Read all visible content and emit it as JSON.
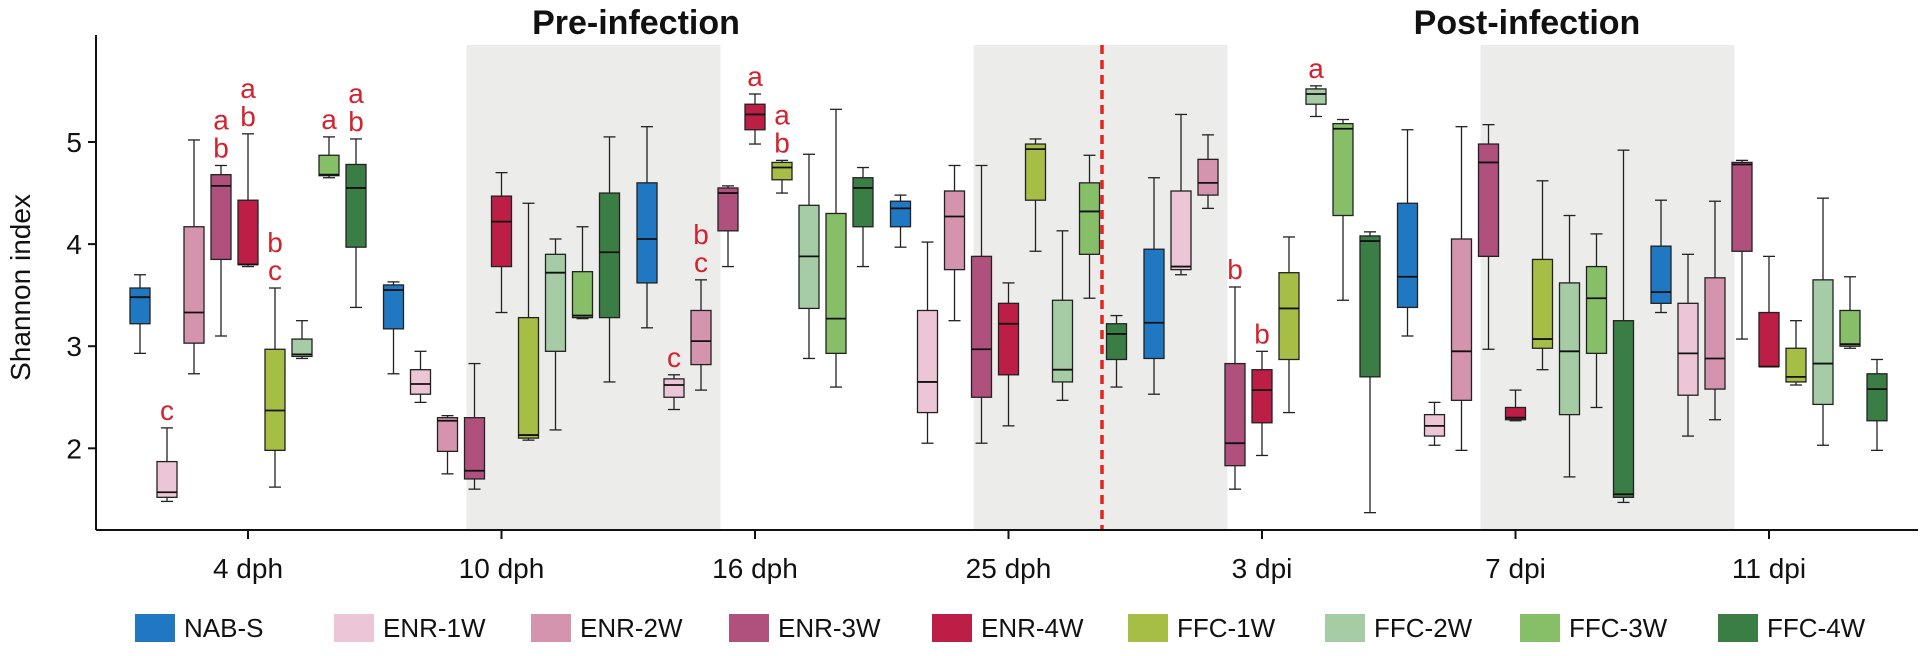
{
  "chart_data": {
    "type": "box",
    "ylabel": "Shannon index",
    "ylim": [
      1.2,
      5.95
    ],
    "yticks": [
      2,
      3,
      4,
      5
    ],
    "phases": [
      "Pre-infection",
      "Post-infection"
    ],
    "groups": [
      "4 dph",
      "10 dph",
      "16 dph",
      "25 dph",
      "3 dpi",
      "7 dpi",
      "11 dpi"
    ],
    "shaded_groups": [
      "10 dph",
      "25 dph",
      "7 dpi"
    ],
    "divider": "between 25 dph and 3 dpi",
    "series": [
      {
        "name": "NAB-S",
        "color": "#1f78c1"
      },
      {
        "name": "ENR-1W",
        "color": "#ecc6d6"
      },
      {
        "name": "ENR-2W",
        "color": "#d494ad"
      },
      {
        "name": "ENR-3W",
        "color": "#b0507c"
      },
      {
        "name": "ENR-4W",
        "color": "#bd1e45"
      },
      {
        "name": "FFC-1W",
        "color": "#a6be46"
      },
      {
        "name": "FFC-2W",
        "color": "#a5cca4"
      },
      {
        "name": "FFC-3W",
        "color": "#86bf68"
      },
      {
        "name": "FFC-4W",
        "color": "#3b7e45"
      }
    ],
    "boxes": [
      [
        {
          "min": 2.93,
          "q1": 3.22,
          "median": 3.48,
          "q3": 3.57,
          "max": 3.7
        },
        {
          "min": 1.48,
          "q1": 1.52,
          "median": 1.57,
          "q3": 1.87,
          "max": 2.2,
          "label": "c"
        },
        {
          "min": 2.73,
          "q1": 3.03,
          "median": 3.33,
          "q3": 4.17,
          "max": 5.02
        },
        {
          "min": 3.1,
          "q1": 3.85,
          "median": 4.57,
          "q3": 4.68,
          "max": 4.77,
          "label": "ab"
        },
        {
          "min": 3.78,
          "q1": 3.8,
          "median": 3.8,
          "q3": 4.43,
          "max": 5.08,
          "label": "ab"
        },
        {
          "min": 1.62,
          "q1": 1.98,
          "median": 2.37,
          "q3": 2.97,
          "max": 3.57,
          "label": "bc"
        },
        {
          "min": 2.88,
          "q1": 2.9,
          "median": 2.92,
          "q3": 3.07,
          "max": 3.25
        },
        {
          "min": 4.65,
          "q1": 4.67,
          "median": 4.68,
          "q3": 4.87,
          "max": 5.05,
          "label": "a"
        },
        {
          "min": 3.38,
          "q1": 3.97,
          "median": 4.55,
          "q3": 4.78,
          "max": 5.03,
          "label": "ab"
        }
      ],
      [
        {
          "min": 2.73,
          "q1": 3.17,
          "median": 3.55,
          "q3": 3.6,
          "max": 3.63
        },
        {
          "min": 2.45,
          "q1": 2.53,
          "median": 2.63,
          "q3": 2.77,
          "max": 2.95
        },
        {
          "min": 1.75,
          "q1": 1.97,
          "median": 2.27,
          "q3": 2.3,
          "max": 2.32
        },
        {
          "min": 1.6,
          "q1": 1.7,
          "median": 1.78,
          "q3": 2.3,
          "max": 2.83
        },
        {
          "min": 3.33,
          "q1": 3.78,
          "median": 4.22,
          "q3": 4.47,
          "max": 4.7
        },
        {
          "min": 2.08,
          "q1": 2.1,
          "median": 2.13,
          "q3": 3.28,
          "max": 4.4
        },
        {
          "min": 2.18,
          "q1": 2.95,
          "median": 3.72,
          "q3": 3.9,
          "max": 4.05
        },
        {
          "min": 3.27,
          "q1": 3.28,
          "median": 3.3,
          "q3": 3.73,
          "max": 4.17
        },
        {
          "min": 2.65,
          "q1": 3.28,
          "median": 3.92,
          "q3": 4.5,
          "max": 5.05
        }
      ],
      [
        {
          "min": 3.18,
          "q1": 3.62,
          "median": 4.05,
          "q3": 4.6,
          "max": 5.15
        },
        {
          "min": 2.38,
          "q1": 2.5,
          "median": 2.62,
          "q3": 2.68,
          "max": 2.72,
          "label": "c"
        },
        {
          "min": 2.57,
          "q1": 2.82,
          "median": 3.05,
          "q3": 3.35,
          "max": 3.65,
          "label": "bc"
        },
        {
          "min": 3.78,
          "q1": 4.13,
          "median": 4.5,
          "q3": 4.55,
          "max": 4.57
        },
        {
          "min": 4.98,
          "q1": 5.12,
          "median": 5.27,
          "q3": 5.37,
          "max": 5.47,
          "label": "a"
        },
        {
          "min": 4.5,
          "q1": 4.63,
          "median": 4.75,
          "q3": 4.8,
          "max": 4.82,
          "label": "ab"
        },
        {
          "min": 2.88,
          "q1": 3.37,
          "median": 3.88,
          "q3": 4.38,
          "max": 4.88
        },
        {
          "min": 2.6,
          "q1": 2.93,
          "median": 3.27,
          "q3": 4.3,
          "max": 5.32
        },
        {
          "min": 3.78,
          "q1": 4.17,
          "median": 4.55,
          "q3": 4.65,
          "max": 4.75
        }
      ],
      [
        {
          "min": 3.97,
          "q1": 4.17,
          "median": 4.35,
          "q3": 4.42,
          "max": 4.48
        },
        {
          "min": 2.05,
          "q1": 2.35,
          "median": 2.65,
          "q3": 3.35,
          "max": 4.02
        },
        {
          "min": 3.25,
          "q1": 3.75,
          "median": 4.27,
          "q3": 4.52,
          "max": 4.77
        },
        {
          "min": 2.05,
          "q1": 2.5,
          "median": 2.97,
          "q3": 3.88,
          "max": 4.77
        },
        {
          "min": 2.22,
          "q1": 2.72,
          "median": 3.22,
          "q3": 3.42,
          "max": 3.62
        },
        {
          "min": 3.93,
          "q1": 4.43,
          "median": 4.93,
          "q3": 4.98,
          "max": 5.03
        },
        {
          "min": 2.47,
          "q1": 2.65,
          "median": 2.77,
          "q3": 3.45,
          "max": 4.13
        },
        {
          "min": 3.47,
          "q1": 3.9,
          "median": 4.32,
          "q3": 4.6,
          "max": 4.87
        },
        {
          "min": 2.6,
          "q1": 2.87,
          "median": 3.12,
          "q3": 3.22,
          "max": 3.3
        }
      ],
      [
        {
          "min": 2.53,
          "q1": 2.88,
          "median": 3.23,
          "q3": 3.95,
          "max": 4.65
        },
        {
          "min": 3.7,
          "q1": 3.75,
          "median": 3.78,
          "q3": 4.52,
          "max": 5.27
        },
        {
          "min": 4.35,
          "q1": 4.48,
          "median": 4.6,
          "q3": 4.83,
          "max": 5.07
        },
        {
          "min": 1.6,
          "q1": 1.83,
          "median": 2.05,
          "q3": 2.83,
          "max": 3.58,
          "label": "b"
        },
        {
          "min": 1.93,
          "q1": 2.25,
          "median": 2.57,
          "q3": 2.77,
          "max": 2.95,
          "label": "b"
        },
        {
          "min": 2.35,
          "q1": 2.87,
          "median": 3.37,
          "q3": 3.72,
          "max": 4.07
        },
        {
          "min": 5.25,
          "q1": 5.37,
          "median": 5.47,
          "q3": 5.52,
          "max": 5.55,
          "label": "a"
        },
        {
          "min": 3.45,
          "q1": 4.28,
          "median": 5.13,
          "q3": 5.18,
          "max": 5.22
        },
        {
          "min": 1.37,
          "q1": 2.7,
          "median": 4.03,
          "q3": 4.08,
          "max": 4.12
        }
      ],
      [
        {
          "min": 3.1,
          "q1": 3.38,
          "median": 3.68,
          "q3": 4.4,
          "max": 5.12
        },
        {
          "min": 2.03,
          "q1": 2.12,
          "median": 2.22,
          "q3": 2.33,
          "max": 2.45
        },
        {
          "min": 1.98,
          "q1": 2.47,
          "median": 2.95,
          "q3": 4.05,
          "max": 5.15
        },
        {
          "min": 2.97,
          "q1": 3.88,
          "median": 4.8,
          "q3": 4.98,
          "max": 5.17
        },
        {
          "min": 2.27,
          "q1": 2.28,
          "median": 2.3,
          "q3": 2.4,
          "max": 2.57
        },
        {
          "min": 2.77,
          "q1": 2.98,
          "median": 3.07,
          "q3": 3.85,
          "max": 4.62
        },
        {
          "min": 1.72,
          "q1": 2.33,
          "median": 2.95,
          "q3": 3.62,
          "max": 4.28
        },
        {
          "min": 2.4,
          "q1": 2.93,
          "median": 3.47,
          "q3": 3.78,
          "max": 4.1
        },
        {
          "min": 1.47,
          "q1": 1.52,
          "median": 1.55,
          "q3": 3.25,
          "max": 4.92
        }
      ],
      [
        {
          "min": 3.33,
          "q1": 3.42,
          "median": 3.53,
          "q3": 3.98,
          "max": 4.43
        },
        {
          "min": 2.12,
          "q1": 2.52,
          "median": 2.93,
          "q3": 3.42,
          "max": 3.9
        },
        {
          "min": 2.28,
          "q1": 2.58,
          "median": 2.88,
          "q3": 3.67,
          "max": 4.42
        },
        {
          "min": 3.07,
          "q1": 3.93,
          "median": 4.78,
          "q3": 4.8,
          "max": 4.82
        },
        {
          "min": 2.8,
          "q1": 2.8,
          "median": 2.8,
          "q3": 3.33,
          "max": 3.88
        },
        {
          "min": 2.62,
          "q1": 2.65,
          "median": 2.7,
          "q3": 2.98,
          "max": 3.25
        },
        {
          "min": 2.03,
          "q1": 2.43,
          "median": 2.83,
          "q3": 3.65,
          "max": 4.45
        },
        {
          "min": 2.98,
          "q1": 3.0,
          "median": 3.02,
          "q3": 3.35,
          "max": 3.68
        },
        {
          "min": 1.98,
          "q1": 2.27,
          "median": 2.58,
          "q3": 2.73,
          "max": 2.87
        }
      ]
    ]
  }
}
